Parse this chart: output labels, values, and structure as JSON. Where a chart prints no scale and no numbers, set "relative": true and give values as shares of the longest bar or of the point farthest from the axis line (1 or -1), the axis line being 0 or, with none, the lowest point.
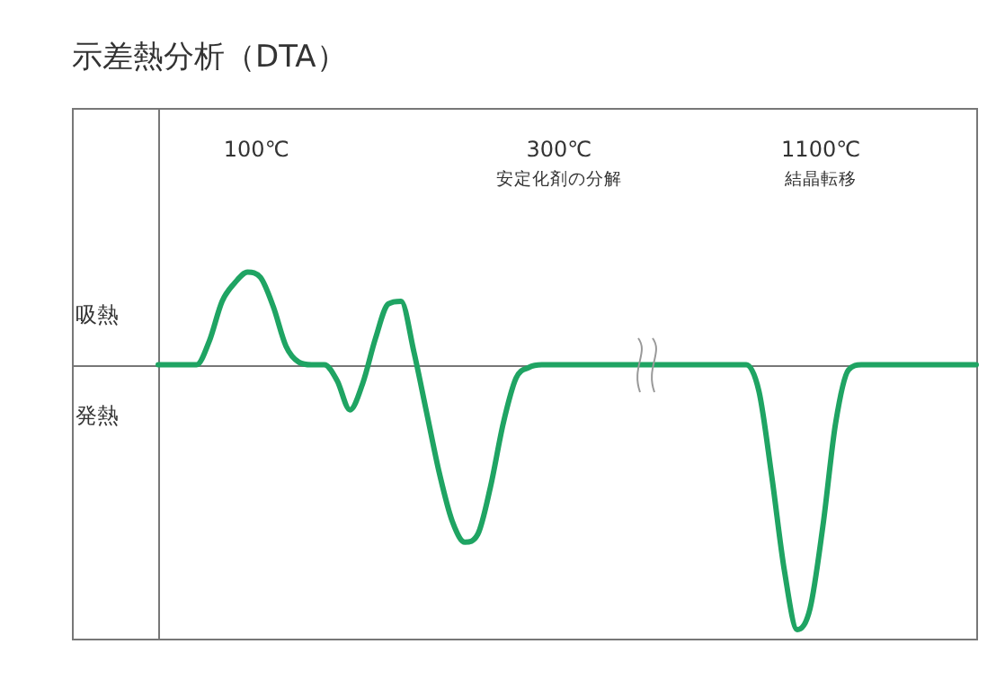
{
  "chart_data": {
    "type": "line",
    "title": "示差熱分析（DTA）",
    "relative": true,
    "legend": false,
    "marker": "none",
    "line_style": "solid",
    "categories": [
      null,
      null,
      null,
      null,
      null,
      null,
      null,
      null,
      null,
      null,
      null,
      null,
      null,
      null,
      null,
      null,
      null,
      null,
      null,
      null,
      null,
      null,
      null,
      null,
      null,
      null,
      null,
      null,
      null,
      null,
      null,
      null,
      null,
      null,
      null,
      null,
      null,
      null,
      null,
      null,
      null,
      null,
      null,
      null,
      null,
      null,
      null,
      null,
      null,
      null,
      null,
      null,
      null,
      null,
      null,
      null,
      null,
      null,
      null,
      null,
      null,
      null,
      null,
      null,
      null
    ],
    "series": [
      {
        "color": "#1fa463",
        "values": [
          0,
          0,
          0,
          0,
          0.09,
          0.24,
          0.31,
          0.35,
          0.33,
          0.22,
          0.07,
          0.01,
          0,
          0,
          -0.06,
          -0.17,
          -0.07,
          0.1,
          0.23,
          0.24,
          0.05,
          -0.18,
          -0.41,
          -0.59,
          -0.67,
          -0.64,
          -0.46,
          -0.22,
          -0.05,
          -0.01,
          0,
          0,
          0,
          0,
          0,
          0,
          0,
          0,
          0,
          0,
          0,
          0,
          0,
          0,
          0,
          0,
          0,
          -0.1,
          -0.42,
          -0.78,
          -1,
          -0.92,
          -0.61,
          -0.22,
          -0.02,
          0,
          0,
          0,
          0,
          0,
          0,
          0,
          0,
          0,
          0
        ]
      }
    ],
    "annotations": [
      "100℃",
      "300℃",
      "安定化剤の分解",
      "1100℃",
      "結晶転移",
      "吸熱",
      "発熱"
    ]
  }
}
